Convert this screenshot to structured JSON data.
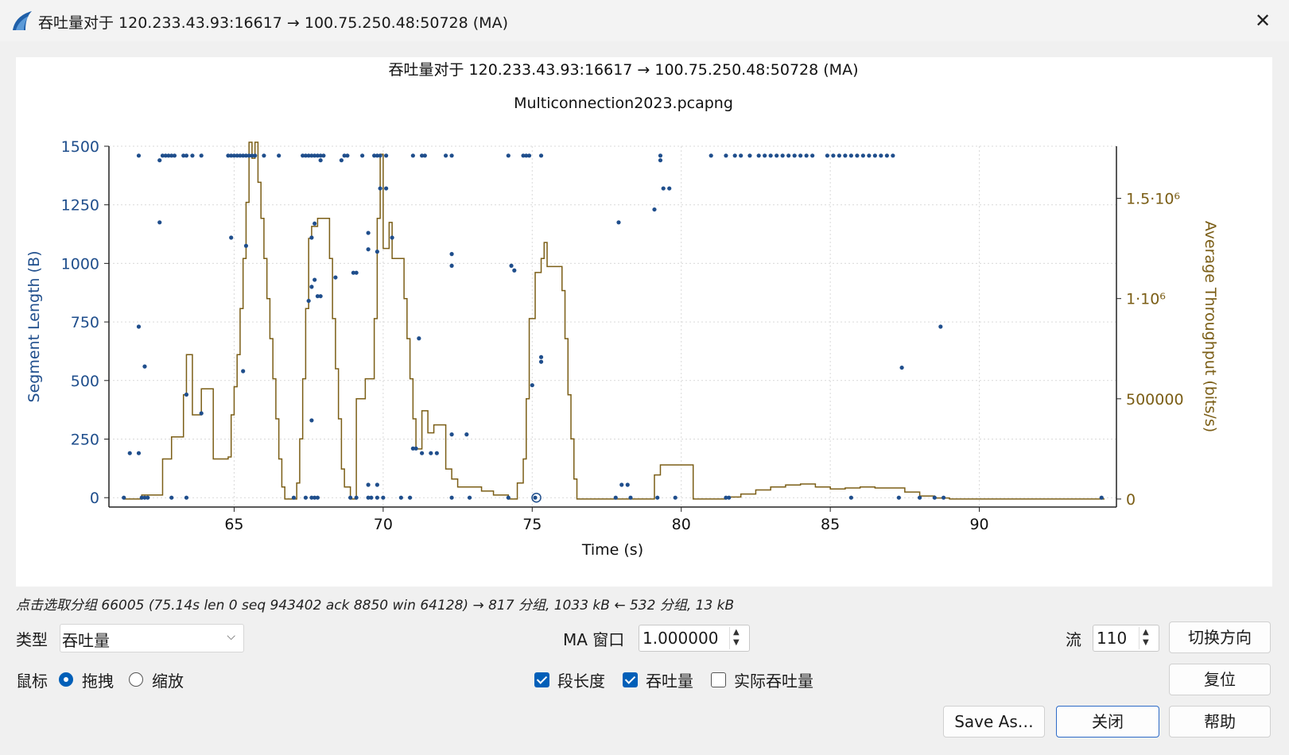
{
  "window": {
    "title": "吞吐量对于 120.233.43.93:16617 → 100.75.250.48:50728 (MA)",
    "close_glyph": "✕",
    "app_icon": "wireshark-fin-icon",
    "accent_color": "#1f4e8c"
  },
  "status_text": "点击选取分组 66005 (75.14s len 0 seq 943402 ack 8850 win 64128) → 817 分组, 1033 kB ← 532 分组, 13 kB",
  "controls": {
    "type_label": "类型",
    "type_value": "吞吐量",
    "ma_label": "MA 窗口",
    "ma_value": "1.000000",
    "stream_label": "流",
    "stream_value": "110",
    "switch_direction": "切换方向",
    "mouse_label": "鼠标",
    "drag_label": "拖拽",
    "zoom_label": "缩放",
    "drag_checked": true,
    "seg_len_label": "段长度",
    "throughput_label": "吞吐量",
    "goodput_label": "实际吞吐量",
    "seg_len_checked": true,
    "throughput_checked": true,
    "goodput_checked": false,
    "reset": "复位",
    "save_as": "Save As…",
    "close": "关闭",
    "help": "帮助"
  },
  "chart_data": {
    "type": "scatter",
    "title": "吞吐量对于 120.233.43.93:16617 → 100.75.250.48:50728 (MA)",
    "subtitle": "Multiconnection2023.pcapng",
    "xlabel": "Time (s)",
    "ylabel": "Segment Length (B)",
    "y2label": "Average Throughput (bits/s)",
    "xlim": [
      60.8,
      94.6
    ],
    "ylim": [
      -40,
      1500
    ],
    "y2lim": [
      -40000,
      1760000
    ],
    "xticks": [
      "65",
      "70",
      "75",
      "80",
      "85",
      "90"
    ],
    "xtick_values": [
      65,
      70,
      75,
      80,
      85,
      90
    ],
    "yticks": [
      "0",
      "250",
      "500",
      "750",
      "1000",
      "1250",
      "1500"
    ],
    "ytick_values": [
      0,
      250,
      500,
      750,
      1000,
      1250,
      1500
    ],
    "y2ticks": [
      "0",
      "500000",
      "1·10⁶",
      "1.5·10⁶"
    ],
    "y2tick_values": [
      0,
      500000,
      1000000,
      1500000
    ],
    "grid": true,
    "series": [
      {
        "name": "段长度",
        "kind": "scatter",
        "color": "#1f4e8c",
        "points": [
          [
            61.3,
            0
          ],
          [
            61.5,
            190
          ],
          [
            61.8,
            190
          ],
          [
            61.9,
            0
          ],
          [
            62.0,
            0
          ],
          [
            62.1,
            0
          ],
          [
            61.8,
            730
          ],
          [
            62.0,
            560
          ],
          [
            61.8,
            1460
          ],
          [
            62.5,
            1175
          ],
          [
            62.5,
            1440
          ],
          [
            62.6,
            1460
          ],
          [
            62.7,
            1460
          ],
          [
            62.8,
            1460
          ],
          [
            62.9,
            1460
          ],
          [
            63.0,
            1460
          ],
          [
            63.3,
            1460
          ],
          [
            63.4,
            1460
          ],
          [
            63.6,
            1460
          ],
          [
            63.9,
            1460
          ],
          [
            62.9,
            0
          ],
          [
            63.4,
            0
          ],
          [
            63.4,
            440
          ],
          [
            63.9,
            360
          ],
          [
            64.8,
            1460
          ],
          [
            64.9,
            1460
          ],
          [
            65.0,
            1460
          ],
          [
            65.1,
            1460
          ],
          [
            65.2,
            1460
          ],
          [
            65.3,
            1460
          ],
          [
            65.4,
            1460
          ],
          [
            65.5,
            1460
          ],
          [
            65.6,
            1460
          ],
          [
            65.7,
            1460
          ],
          [
            66.0,
            1460
          ],
          [
            66.5,
            1460
          ],
          [
            64.9,
            1110
          ],
          [
            65.3,
            540
          ],
          [
            65.4,
            1075
          ],
          [
            67.3,
            1460
          ],
          [
            67.4,
            1460
          ],
          [
            67.5,
            1460
          ],
          [
            67.6,
            1460
          ],
          [
            67.7,
            1460
          ],
          [
            67.8,
            1460
          ],
          [
            67.9,
            1460
          ],
          [
            68.0,
            1460
          ],
          [
            67.9,
            1440
          ],
          [
            67.5,
            840
          ],
          [
            67.6,
            900
          ],
          [
            67.7,
            930
          ],
          [
            67.8,
            860
          ],
          [
            67.9,
            860
          ],
          [
            67.6,
            1110
          ],
          [
            67.7,
            1170
          ],
          [
            68.4,
            940
          ],
          [
            67.6,
            330
          ],
          [
            67.0,
            0
          ],
          [
            67.4,
            0
          ],
          [
            67.6,
            0
          ],
          [
            67.7,
            0
          ],
          [
            67.8,
            0
          ],
          [
            68.6,
            1440
          ],
          [
            68.7,
            1460
          ],
          [
            68.8,
            1460
          ],
          [
            69.3,
            1460
          ],
          [
            69.7,
            1460
          ],
          [
            69.8,
            1460
          ],
          [
            69.9,
            1460
          ],
          [
            70.1,
            1460
          ],
          [
            69.5,
            1130
          ],
          [
            69.5,
            1060
          ],
          [
            69.8,
            1050
          ],
          [
            69.0,
            960
          ],
          [
            69.1,
            960
          ],
          [
            69.9,
            1320
          ],
          [
            70.1,
            1320
          ],
          [
            70.3,
            1110
          ],
          [
            71.2,
            680
          ],
          [
            71.0,
            210
          ],
          [
            71.1,
            210
          ],
          [
            71.3,
            190
          ],
          [
            71.6,
            190
          ],
          [
            71.8,
            190
          ],
          [
            68.9,
            0
          ],
          [
            69.1,
            0
          ],
          [
            69.5,
            0
          ],
          [
            69.6,
            0
          ],
          [
            69.8,
            0
          ],
          [
            70.0,
            0
          ],
          [
            70.6,
            0
          ],
          [
            70.9,
            0
          ],
          [
            69.5,
            55
          ],
          [
            69.8,
            55
          ],
          [
            71.0,
            1460
          ],
          [
            71.3,
            1460
          ],
          [
            71.4,
            1460
          ],
          [
            72.1,
            1460
          ],
          [
            72.3,
            1460
          ],
          [
            72.3,
            1040
          ],
          [
            72.3,
            990
          ],
          [
            72.3,
            270
          ],
          [
            72.8,
            270
          ],
          [
            72.3,
            0
          ],
          [
            72.9,
            0
          ],
          [
            74.2,
            1460
          ],
          [
            74.7,
            1460
          ],
          [
            74.8,
            1460
          ],
          [
            74.9,
            1460
          ],
          [
            75.3,
            1460
          ],
          [
            74.3,
            990
          ],
          [
            74.4,
            970
          ],
          [
            75.3,
            600
          ],
          [
            75.3,
            580
          ],
          [
            75.0,
            480
          ],
          [
            74.2,
            0
          ],
          [
            75.1,
            0
          ],
          [
            77.9,
            1175
          ],
          [
            78.0,
            55
          ],
          [
            78.2,
            55
          ],
          [
            77.8,
            0
          ],
          [
            78.3,
            0
          ],
          [
            79.3,
            1460
          ],
          [
            79.3,
            1440
          ],
          [
            79.4,
            1320
          ],
          [
            79.6,
            1320
          ],
          [
            79.1,
            1230
          ],
          [
            79.2,
            0
          ],
          [
            79.8,
            0
          ],
          [
            81.0,
            1460
          ],
          [
            81.5,
            1460
          ],
          [
            81.8,
            1460
          ],
          [
            82.0,
            1460
          ],
          [
            82.3,
            1460
          ],
          [
            82.6,
            1460
          ],
          [
            82.8,
            1460
          ],
          [
            83.0,
            1460
          ],
          [
            83.2,
            1460
          ],
          [
            83.4,
            1460
          ],
          [
            83.6,
            1460
          ],
          [
            83.8,
            1460
          ],
          [
            84.0,
            1460
          ],
          [
            84.2,
            1460
          ],
          [
            84.4,
            1460
          ],
          [
            84.9,
            1460
          ],
          [
            85.1,
            1460
          ],
          [
            85.3,
            1460
          ],
          [
            85.5,
            1460
          ],
          [
            85.7,
            1460
          ],
          [
            85.9,
            1460
          ],
          [
            86.1,
            1460
          ],
          [
            86.3,
            1460
          ],
          [
            86.5,
            1460
          ],
          [
            86.7,
            1460
          ],
          [
            86.9,
            1460
          ],
          [
            87.1,
            1460
          ],
          [
            81.5,
            0
          ],
          [
            81.6,
            0
          ],
          [
            85.7,
            0
          ],
          [
            87.3,
            0
          ],
          [
            87.4,
            555
          ],
          [
            88.0,
            0
          ],
          [
            88.5,
            0
          ],
          [
            88.8,
            0
          ],
          [
            88.7,
            730
          ],
          [
            94.1,
            0
          ]
        ]
      },
      {
        "name": "吞吐量",
        "kind": "line",
        "color": "#7b5e16",
        "points": [
          [
            61.3,
            0
          ],
          [
            61.8,
            0
          ],
          [
            61.9,
            20000
          ],
          [
            62.2,
            20000
          ],
          [
            62.5,
            20000
          ],
          [
            62.6,
            200000
          ],
          [
            62.8,
            200000
          ],
          [
            62.9,
            310000
          ],
          [
            63.2,
            310000
          ],
          [
            63.3,
            520000
          ],
          [
            63.4,
            720000
          ],
          [
            63.6,
            640000
          ],
          [
            63.6,
            420000
          ],
          [
            63.8,
            420000
          ],
          [
            63.9,
            550000
          ],
          [
            64.2,
            550000
          ],
          [
            64.3,
            460000
          ],
          [
            64.3,
            200000
          ],
          [
            64.7,
            200000
          ],
          [
            64.8,
            210000
          ],
          [
            64.9,
            420000
          ],
          [
            65.0,
            560000
          ],
          [
            65.1,
            720000
          ],
          [
            65.2,
            950000
          ],
          [
            65.3,
            1200000
          ],
          [
            65.4,
            1480000
          ],
          [
            65.5,
            1780000
          ],
          [
            65.6,
            1700000
          ],
          [
            65.7,
            1780000
          ],
          [
            65.8,
            1580000
          ],
          [
            65.9,
            1400000
          ],
          [
            66.0,
            1200000
          ],
          [
            66.1,
            1000000
          ],
          [
            66.2,
            800000
          ],
          [
            66.3,
            600000
          ],
          [
            66.4,
            400000
          ],
          [
            66.5,
            200000
          ],
          [
            66.6,
            60000
          ],
          [
            66.7,
            0
          ],
          [
            67.0,
            0
          ],
          [
            67.1,
            80000
          ],
          [
            67.2,
            300000
          ],
          [
            67.3,
            600000
          ],
          [
            67.4,
            950000
          ],
          [
            67.5,
            1300000
          ],
          [
            67.6,
            1360000
          ],
          [
            67.8,
            1400000
          ],
          [
            68.1,
            1400000
          ],
          [
            68.2,
            1200000
          ],
          [
            68.3,
            900000
          ],
          [
            68.4,
            650000
          ],
          [
            68.5,
            400000
          ],
          [
            68.6,
            150000
          ],
          [
            68.7,
            60000
          ],
          [
            68.8,
            60000
          ],
          [
            68.9,
            0
          ],
          [
            69.0,
            0
          ],
          [
            69.1,
            500000
          ],
          [
            69.3,
            500000
          ],
          [
            69.4,
            600000
          ],
          [
            69.6,
            600000
          ],
          [
            69.7,
            900000
          ],
          [
            69.8,
            1400000
          ],
          [
            69.9,
            1720000
          ],
          [
            70.0,
            1250000
          ],
          [
            70.2,
            1380000
          ],
          [
            70.3,
            1200000
          ],
          [
            70.6,
            1200000
          ],
          [
            70.7,
            1000000
          ],
          [
            70.8,
            800000
          ],
          [
            70.9,
            600000
          ],
          [
            71.0,
            400000
          ],
          [
            71.1,
            250000
          ],
          [
            71.3,
            440000
          ],
          [
            71.5,
            330000
          ],
          [
            71.7,
            370000
          ],
          [
            72.0,
            370000
          ],
          [
            72.1,
            150000
          ],
          [
            72.3,
            100000
          ],
          [
            72.5,
            60000
          ],
          [
            72.9,
            60000
          ],
          [
            73.3,
            40000
          ],
          [
            73.7,
            20000
          ],
          [
            74.2,
            0
          ],
          [
            74.4,
            0
          ],
          [
            74.5,
            80000
          ],
          [
            74.6,
            80000
          ],
          [
            74.7,
            200000
          ],
          [
            74.8,
            500000
          ],
          [
            74.9,
            900000
          ],
          [
            75.1,
            1130000
          ],
          [
            75.3,
            1200000
          ],
          [
            75.4,
            1280000
          ],
          [
            75.5,
            1160000
          ],
          [
            75.9,
            1160000
          ],
          [
            76.0,
            1040000
          ],
          [
            76.1,
            800000
          ],
          [
            76.2,
            520000
          ],
          [
            76.3,
            300000
          ],
          [
            76.4,
            100000
          ],
          [
            76.5,
            0
          ],
          [
            79.0,
            0
          ],
          [
            79.1,
            120000
          ],
          [
            79.3,
            170000
          ],
          [
            80.3,
            170000
          ],
          [
            80.4,
            0
          ],
          [
            81.3,
            0
          ],
          [
            81.5,
            10000
          ],
          [
            82.0,
            25000
          ],
          [
            82.5,
            45000
          ],
          [
            83.0,
            60000
          ],
          [
            83.5,
            70000
          ],
          [
            84.0,
            75000
          ],
          [
            84.5,
            60000
          ],
          [
            85.0,
            50000
          ],
          [
            85.5,
            55000
          ],
          [
            86.0,
            60000
          ],
          [
            86.5,
            55000
          ],
          [
            87.0,
            55000
          ],
          [
            87.5,
            35000
          ],
          [
            88.0,
            15000
          ],
          [
            88.5,
            5000
          ],
          [
            89.0,
            0
          ],
          [
            94.2,
            0
          ]
        ]
      }
    ],
    "selected_point": [
      75.14,
      0
    ]
  }
}
